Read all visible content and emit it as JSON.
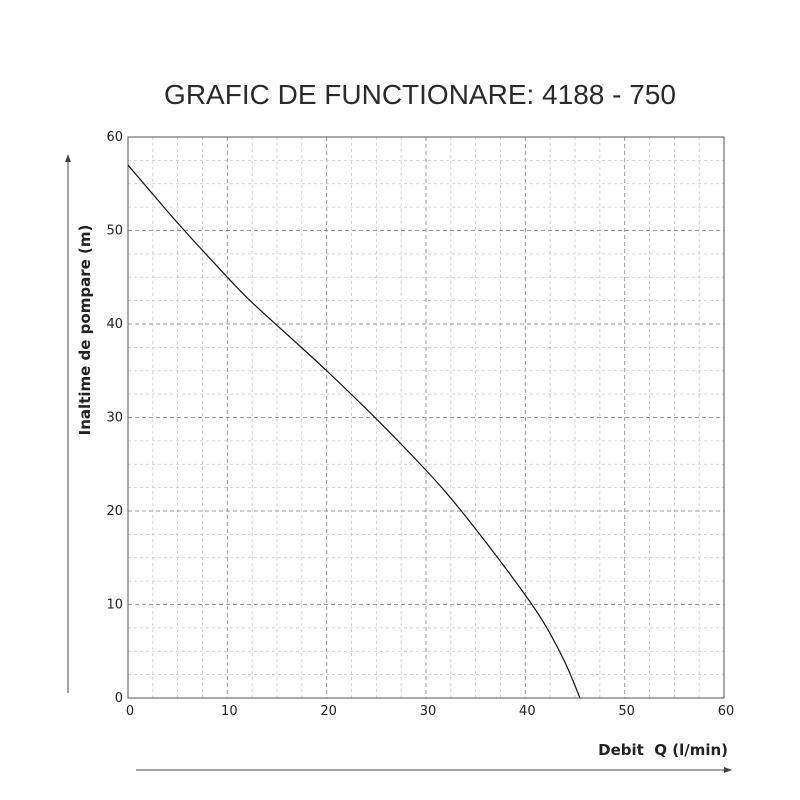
{
  "chart_data": {
    "type": "line",
    "title": "GRAFIC DE FUNCTIONARE: 4188 - 750",
    "xlabel": "Debit  Q (l/min)",
    "ylabel": "Inaltime de pompare (m)",
    "xlim": [
      0,
      60
    ],
    "ylim": [
      0,
      60
    ],
    "xticks": [
      0,
      10,
      20,
      30,
      40,
      50,
      60
    ],
    "yticks": [
      0,
      10,
      20,
      30,
      40,
      50,
      60
    ],
    "xtick_labels": [
      "0",
      "10",
      "20",
      "30",
      "40",
      "50",
      "60"
    ],
    "ytick_labels": [
      "0",
      "10",
      "20",
      "30",
      "40",
      "50",
      "60"
    ],
    "grid": true,
    "series": [
      {
        "x": [
          0,
          2,
          5,
          8,
          12,
          16,
          20,
          24,
          28,
          32,
          36,
          40,
          42,
          44,
          45.5
        ],
        "y": [
          57,
          54.5,
          50.8,
          47.3,
          42.8,
          38.9,
          35.0,
          30.9,
          26.6,
          22.0,
          16.7,
          11.0,
          7.8,
          3.8,
          0
        ]
      }
    ]
  }
}
